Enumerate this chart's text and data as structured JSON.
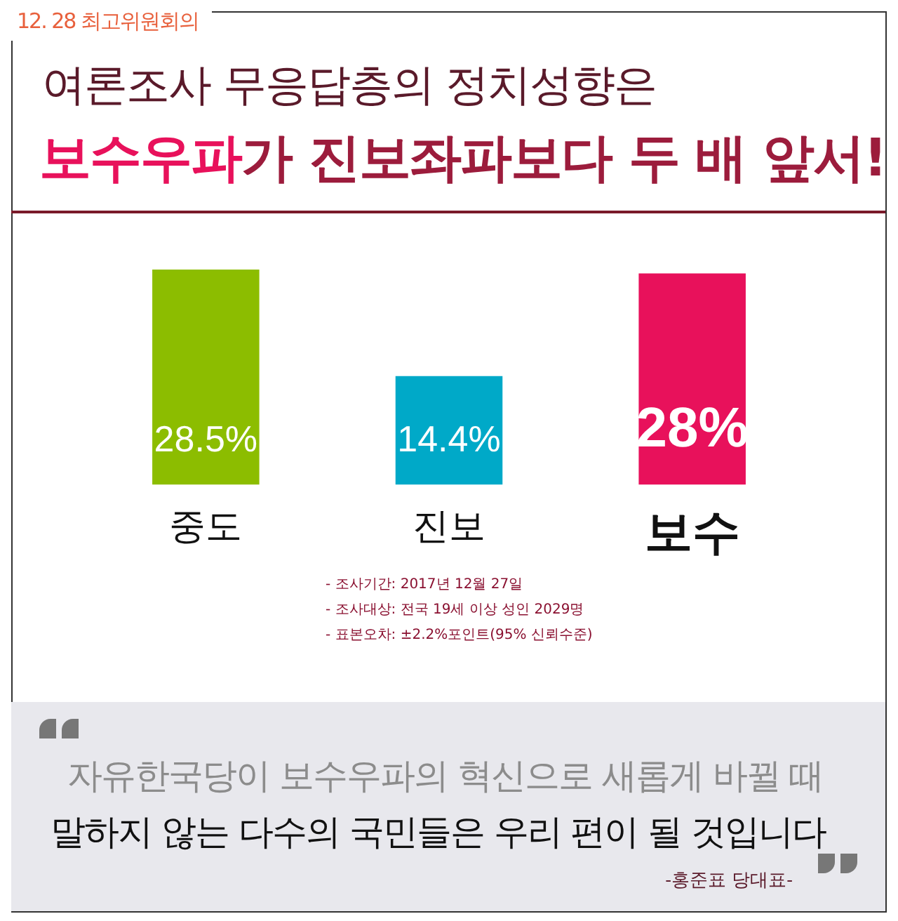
{
  "chart_data": {
    "type": "bar",
    "title": "여론조사 무응답층의 정치성향은",
    "subtitle": "보수우파가 진보좌파보다 두 배 앞서!",
    "categories": [
      "중도",
      "진보",
      "보수"
    ],
    "values": [
      28.5,
      14.4,
      28
    ],
    "colors": [
      "#8cbd00",
      "#00a9c8",
      "#e8115b"
    ],
    "value_labels": [
      "28.5%",
      "14.4%",
      "28%"
    ],
    "annotations": [
      "12. 28 최고위원회의",
      "- 조사기간: 2017년 12월 27일",
      "- 조사대상: 전국 19세 이상 성인 2029명",
      "- 표본오차: ±2.2%포인트(95% 신뢰수준)",
      "자유한국당이 보수우파의 혁신으로 새롭게 바뀔 때",
      "말하지 않는 다수의 국민들은 우리 편이 될 것입니다",
      "-홍준표 당대표-"
    ]
  }
}
